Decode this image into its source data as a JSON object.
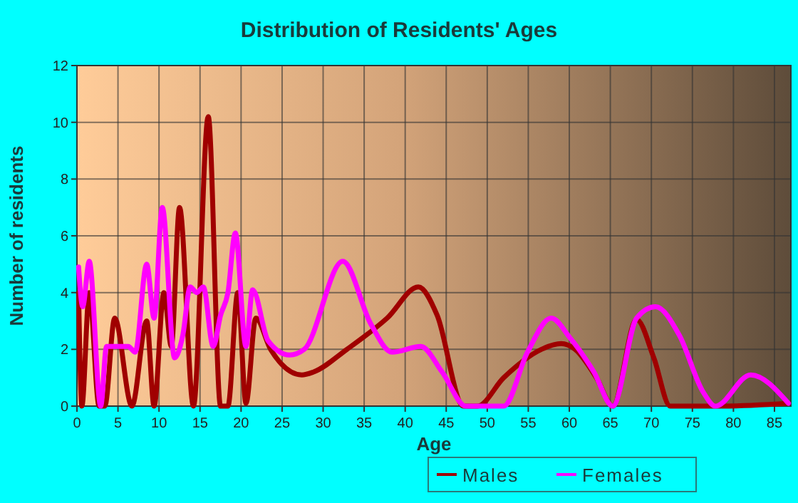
{
  "chart_data": {
    "type": "line",
    "title": "Distribution of Residents' Ages",
    "xlabel": "Age",
    "ylabel": "Number of residents",
    "xlim": [
      0,
      87
    ],
    "ylim": [
      0,
      12
    ],
    "xticks": [
      0,
      5,
      10,
      15,
      20,
      25,
      30,
      35,
      40,
      45,
      50,
      55,
      60,
      65,
      70,
      75,
      80,
      85
    ],
    "yticks": [
      0,
      2,
      4,
      6,
      8,
      10,
      12
    ],
    "grid": true,
    "legend": "bottom",
    "marker": "none",
    "line_style": "solid",
    "series": [
      {
        "name": "Males",
        "color": "#a00000",
        "x": [
          0.2,
          0.6,
          1.5,
          2.7,
          3.4,
          4.6,
          6.7,
          8.5,
          9.4,
          10.6,
          11.5,
          12.5,
          14.2,
          16,
          17.5,
          18.4,
          19.6,
          20.6,
          21.8,
          23.6,
          27.4,
          28.8,
          32.9,
          37.8,
          41.6,
          43.9,
          47.1,
          48.8,
          52,
          56.6,
          59,
          60.7,
          63.3,
          65.3,
          68.2,
          70.3,
          72.3,
          78.6,
          86.7
        ],
        "values": [
          4,
          0,
          4,
          0,
          0,
          3.1,
          0,
          3,
          0,
          4,
          2.1,
          7,
          0,
          10.2,
          0,
          0,
          4,
          0.1,
          3.1,
          2,
          1.1,
          1.2,
          2,
          3.1,
          4.2,
          3.2,
          0,
          0,
          1,
          2,
          2.2,
          2,
          1,
          0,
          3.05,
          1.7,
          0,
          0,
          0.1
        ]
      },
      {
        "name": "Females",
        "color": "#ff00ff",
        "x": [
          0.2,
          0.7,
          1.5,
          2.9,
          3.6,
          6.25,
          7.1,
          8.5,
          9.4,
          10.4,
          11.9,
          12.9,
          13.8,
          14.6,
          15.4,
          16.6,
          17.5,
          18.4,
          19.3,
          20.6,
          21.4,
          23.3,
          25.9,
          27.7,
          32.4,
          35.8,
          38.4,
          41.9,
          44.5,
          47.4,
          52,
          54.9,
          57.8,
          60.1,
          63,
          65.3,
          68.2,
          70.5,
          73.4,
          76.3,
          77.8,
          82.1,
          86.7
        ],
        "values": [
          4.9,
          3.5,
          5.1,
          0,
          2.1,
          2.1,
          1.9,
          5,
          3.1,
          7,
          1.7,
          2.5,
          4.2,
          4,
          4.2,
          2.1,
          3.2,
          4,
          6.1,
          2.1,
          4.1,
          2.3,
          1.8,
          2,
          5.1,
          2.9,
          1.9,
          2.1,
          1.2,
          0,
          0,
          1.9,
          3.1,
          2.4,
          1.2,
          0,
          3.1,
          3.5,
          2.5,
          0.5,
          0,
          1.1,
          0.1
        ]
      }
    ]
  }
}
